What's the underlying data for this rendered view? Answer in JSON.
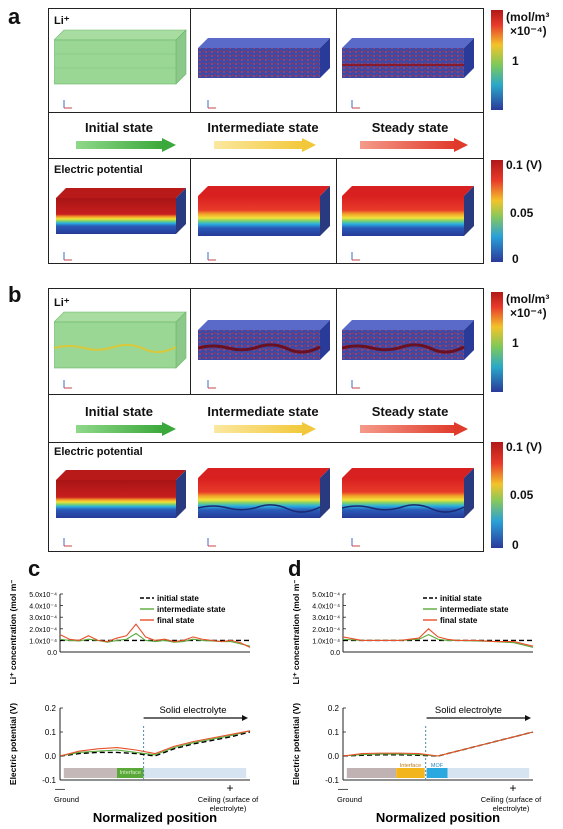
{
  "panels": {
    "a": "a",
    "b": "b",
    "c": "c",
    "d": "d"
  },
  "li_title": "Li⁺",
  "electric_potential_title": "Electric potential",
  "states": [
    "Initial state",
    "Intermediate state",
    "Steady state"
  ],
  "colorbar_li": {
    "unit_line1": "(mol/m³",
    "unit_line2": "×10⁻⁴)",
    "tick": "1"
  },
  "colorbar_ep": {
    "top": "0.1 (V)",
    "mid": "0.05",
    "bottom": "0"
  },
  "colors": {
    "arrow_initial": "#5cb85c",
    "arrow_intermediate": "#f5d25a",
    "arrow_steady": "#e8483a",
    "interface_c": "#5aa83a",
    "interface_d": "#f2b51c",
    "mof_d": "#2aa8e0",
    "ground_block": "#c5b8b8",
    "electrolyte_block": "#d6e4f2"
  },
  "plot_c": {
    "ylabel_top": "Li⁺ concentration (mol m⁻³)",
    "ylabel_bottom": "Electric potential (V)",
    "xlabel": "Normalized position",
    "ground_label": "Ground",
    "ceiling_label": "Ceiling (surface of electrolyte)",
    "solid_electrolyte": "Solid electrolyte",
    "interface_label": "Interface",
    "minus": "—",
    "plus": "+",
    "legend": [
      "initial state",
      "intermediate state",
      "final state"
    ],
    "yticks_top": [
      "5.0x10⁻⁴",
      "4.0x10⁻⁴",
      "3.0x10⁻⁴",
      "2.0x10⁻⁴",
      "1.0x10⁻⁴",
      "0.0"
    ],
    "yticks_bottom": [
      "0.2",
      "0.1",
      "0.0",
      "-0.1"
    ]
  },
  "plot_d": {
    "ylabel_top": "Li⁺ concentration (mol m⁻³)",
    "ylabel_bottom": "Electric potential (V)",
    "xlabel": "Normalized position",
    "ground_label": "Ground",
    "ceiling_label": "Ceiling (surface of electrolyte)",
    "solid_electrolyte": "Solid electrolyte",
    "interface_label": "Interface",
    "mof_label": "MOF",
    "minus": "—",
    "plus": "+",
    "legend": [
      "initial state",
      "intermediate state",
      "final state"
    ],
    "yticks_top": [
      "5.0x10⁻⁴",
      "4.0x10⁻⁴",
      "3.0x10⁻⁴",
      "2.0x10⁻⁴",
      "1.0x10⁻⁴",
      "0.0"
    ],
    "yticks_bottom": [
      "0.2",
      "0.1",
      "0.0",
      "-0.1"
    ]
  },
  "chart_data": [
    {
      "type": "line",
      "panel": "c",
      "title": "",
      "ylabel": "Li⁺ concentration (mol m⁻³)",
      "ylim": [
        0,
        0.0005
      ],
      "x": [
        0,
        0.05,
        0.1,
        0.15,
        0.2,
        0.25,
        0.3,
        0.35,
        0.4,
        0.45,
        0.5,
        0.55,
        0.6,
        0.65,
        0.7,
        0.75,
        0.8,
        0.85,
        0.9,
        0.95,
        1.0
      ],
      "series": [
        {
          "name": "initial state",
          "style": "dashed",
          "color": "#000000",
          "values": [
            0.0001,
            0.0001,
            0.0001,
            0.0001,
            0.0001,
            0.0001,
            0.0001,
            0.0001,
            0.0001,
            0.0001,
            0.0001,
            0.0001,
            0.0001,
            0.0001,
            0.0001,
            0.0001,
            0.0001,
            0.0001,
            0.0001,
            0.0001,
            0.0001
          ]
        },
        {
          "name": "intermediate state",
          "color": "#5aaa3c",
          "values": [
            0.00011,
            0.0001,
            9.5e-05,
            0.00011,
            0.0001,
            8.5e-05,
            0.0001,
            0.00011,
            0.00016,
            0.0001,
            9e-05,
            0.0001,
            8.5e-05,
            9e-05,
            0.00011,
            0.0001,
            9.5e-05,
            9e-05,
            9e-05,
            7e-05,
            5e-05
          ]
        },
        {
          "name": "final state",
          "color": "#e8502a",
          "values": [
            0.00015,
            0.00011,
            0.0001,
            0.00014,
            0.0001,
            9e-05,
            0.00012,
            0.00014,
            0.00024,
            0.00013,
            0.0001,
            0.00011,
            9e-05,
            0.0001,
            0.00013,
            0.00011,
            0.0001,
            9e-05,
            0.0001,
            8e-05,
            4e-05
          ]
        }
      ]
    },
    {
      "type": "line",
      "panel": "c",
      "ylabel": "Electric potential (V)",
      "ylim": [
        -0.1,
        0.2
      ],
      "x": [
        0,
        0.1,
        0.2,
        0.3,
        0.4,
        0.5,
        0.6,
        0.7,
        0.8,
        0.9,
        1.0
      ],
      "series": [
        {
          "name": "initial state",
          "style": "dashed",
          "color": "#000000",
          "values": [
            0.0,
            0.01,
            0.015,
            0.015,
            0.01,
            0.0,
            0.03,
            0.05,
            0.065,
            0.08,
            0.1
          ]
        },
        {
          "name": "intermediate state",
          "color": "#5aaa3c",
          "values": [
            0.0,
            0.015,
            0.02,
            0.025,
            0.015,
            0.005,
            0.035,
            0.055,
            0.07,
            0.085,
            0.105
          ]
        },
        {
          "name": "final state",
          "color": "#e8502a",
          "values": [
            0.0,
            0.02,
            0.03,
            0.035,
            0.025,
            0.01,
            0.04,
            0.06,
            0.075,
            0.09,
            0.105
          ]
        }
      ]
    },
    {
      "type": "line",
      "panel": "d",
      "ylabel": "Li⁺ concentration (mol m⁻³)",
      "ylim": [
        0,
        0.0005
      ],
      "x": [
        0,
        0.1,
        0.2,
        0.3,
        0.4,
        0.45,
        0.5,
        0.55,
        0.6,
        0.7,
        0.8,
        0.9,
        1.0
      ],
      "series": [
        {
          "name": "initial state",
          "style": "dashed",
          "color": "#000000",
          "values": [
            0.0001,
            0.0001,
            0.0001,
            0.0001,
            0.0001,
            0.0001,
            0.0001,
            0.0001,
            0.0001,
            0.0001,
            0.0001,
            0.0001,
            0.0001
          ]
        },
        {
          "name": "intermediate state",
          "color": "#5aaa3c",
          "values": [
            0.00011,
            0.0001,
            0.0001,
            0.0001,
            0.00011,
            0.00015,
            0.00011,
            0.0001,
            0.0001,
            9.5e-05,
            9e-05,
            8e-05,
            4e-05
          ]
        },
        {
          "name": "final state",
          "color": "#e8502a",
          "values": [
            0.00013,
            0.0001,
            0.0001,
            0.0001,
            0.00012,
            0.0002,
            0.00013,
            0.00011,
            0.0001,
            0.0001,
            9e-05,
            9e-05,
            5e-05
          ]
        }
      ]
    },
    {
      "type": "line",
      "panel": "d",
      "ylabel": "Electric potential (V)",
      "ylim": [
        -0.1,
        0.2
      ],
      "x": [
        0,
        0.1,
        0.2,
        0.3,
        0.4,
        0.5,
        0.6,
        0.7,
        0.8,
        0.9,
        1.0
      ],
      "series": [
        {
          "name": "initial state",
          "style": "dashed",
          "color": "#000000",
          "values": [
            0.0,
            0.003,
            0.005,
            0.005,
            0.003,
            0.0,
            0.02,
            0.04,
            0.06,
            0.08,
            0.1
          ]
        },
        {
          "name": "intermediate state",
          "color": "#5aaa3c",
          "values": [
            0.0,
            0.006,
            0.008,
            0.008,
            0.006,
            0.0,
            0.02,
            0.04,
            0.06,
            0.08,
            0.1
          ]
        },
        {
          "name": "final state",
          "color": "#e8502a",
          "values": [
            0.0,
            0.01,
            0.012,
            0.012,
            0.01,
            0.0,
            0.02,
            0.04,
            0.06,
            0.08,
            0.1
          ]
        }
      ]
    }
  ]
}
